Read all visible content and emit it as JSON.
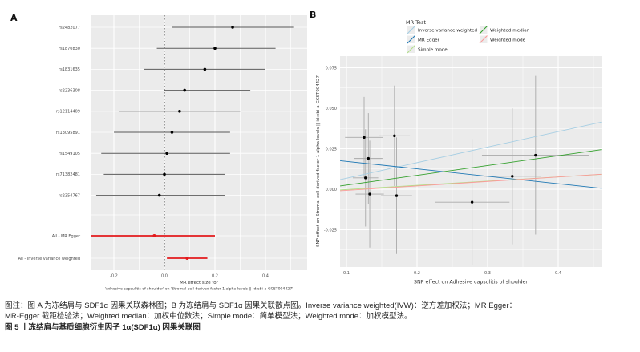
{
  "panels": {
    "a_label": "A",
    "b_label": "B"
  },
  "colors": {
    "panel_background": "#EBEBEB",
    "gridline": "#FFFFFF",
    "ci_line": "#5A5A5A",
    "point": "#000000",
    "summary_red": "#E31A1C",
    "error_bar": "#A9A9A9",
    "axis_text": "#4D4D4D",
    "ivw": "#A6CEE3",
    "mr_egger": "#1F78B4",
    "simple_mode": "#B2DF8A",
    "weighted_median": "#33A02C",
    "weighted_mode": "#FB9A99"
  },
  "chart_data": [
    {
      "type": "scatter",
      "subtype": "forest",
      "title": "",
      "xlabel_line1": "MR effect size for",
      "xlabel_line2": "'Adhesive capsulitis of shoulder' on 'Stromal-cell-derived factor 1 alpha levels || id:ebi-a-GCST004427'",
      "x_ticks": [
        -0.2,
        0.0,
        0.2,
        0.4
      ],
      "x_tick_labels": [
        "-0.2",
        "0.0",
        "0.2",
        "0.4"
      ],
      "xlim": [
        -0.29,
        0.56
      ],
      "zero_line": 0.0,
      "grid_step": 0.1,
      "rows": [
        {
          "label": "rs2482077",
          "estimate": 0.27,
          "ci_low": 0.03,
          "ci_high": 0.51,
          "group": "snp"
        },
        {
          "label": "rs1870830",
          "estimate": 0.2,
          "ci_low": -0.03,
          "ci_high": 0.44,
          "group": "snp"
        },
        {
          "label": "rs1831635",
          "estimate": 0.16,
          "ci_low": -0.08,
          "ci_high": 0.4,
          "group": "snp"
        },
        {
          "label": "rs2236308",
          "estimate": 0.08,
          "ci_low": 0.0,
          "ci_high": 0.34,
          "group": "snp"
        },
        {
          "label": "rs12114409",
          "estimate": 0.06,
          "ci_low": -0.18,
          "ci_high": 0.3,
          "group": "snp"
        },
        {
          "label": "rs13095891",
          "estimate": 0.03,
          "ci_low": -0.2,
          "ci_high": 0.26,
          "group": "snp"
        },
        {
          "label": "rs1549105",
          "estimate": 0.01,
          "ci_low": -0.25,
          "ci_high": 0.26,
          "group": "snp"
        },
        {
          "label": "rs71382481",
          "estimate": 0.0,
          "ci_low": -0.24,
          "ci_high": 0.24,
          "group": "snp"
        },
        {
          "label": "rs2354767",
          "estimate": -0.02,
          "ci_low": -0.27,
          "ci_high": 0.24,
          "group": "snp"
        },
        {
          "label": "All - MR Egger",
          "estimate": -0.04,
          "ci_low": -0.29,
          "ci_high": 0.2,
          "group": "summary"
        },
        {
          "label": "All - Inverse variance weighted",
          "estimate": 0.09,
          "ci_low": 0.01,
          "ci_high": 0.17,
          "group": "summary"
        }
      ]
    },
    {
      "type": "scatter",
      "xlabel": "SNP effect on Adhesive capsulitis of shoulder",
      "ylabel": "SNP effect on Stromal-cell-derived factor 1 alpha levels || id:ebi-a-GCST004427",
      "x_ticks": [
        0.1,
        0.2,
        0.3,
        0.4
      ],
      "x_tick_labels": [
        "0.1",
        "0.2",
        "0.3",
        "0.4"
      ],
      "y_ticks": [
        0.075,
        0.05,
        0.025,
        0.0,
        -0.025
      ],
      "y_tick_labels": [
        "0.075",
        "0.050",
        "0.025",
        "0.000",
        "-0.025"
      ],
      "xlim": [
        0.091,
        0.461
      ],
      "ylim": [
        -0.048,
        0.082
      ],
      "grid": true,
      "points": [
        {
          "x": 0.125,
          "y": 0.032,
          "xerr": 0.027,
          "yerr": 0.025
        },
        {
          "x": 0.168,
          "y": 0.033,
          "xerr": 0.022,
          "yerr": 0.031
        },
        {
          "x": 0.131,
          "y": 0.019,
          "xerr": 0.02,
          "yerr": 0.028
        },
        {
          "x": 0.127,
          "y": 0.007,
          "xerr": 0.018,
          "yerr": 0.03
        },
        {
          "x": 0.133,
          "y": -0.003,
          "xerr": 0.02,
          "yerr": 0.033
        },
        {
          "x": 0.171,
          "y": -0.004,
          "xerr": 0.022,
          "yerr": 0.036
        },
        {
          "x": 0.278,
          "y": -0.008,
          "xerr": 0.053,
          "yerr": 0.039
        },
        {
          "x": 0.335,
          "y": 0.008,
          "xerr": 0.04,
          "yerr": 0.042
        },
        {
          "x": 0.368,
          "y": 0.021,
          "xerr": 0.076,
          "yerr": 0.049
        }
      ],
      "lines": [
        {
          "name": "Inverse variance weighted",
          "color": "#A6CEE3",
          "intercept": -0.0028,
          "slope": 0.096
        },
        {
          "name": "MR Egger",
          "color": "#1F78B4",
          "intercept": 0.0218,
          "slope": -0.046
        },
        {
          "name": "Simple mode",
          "color": "#B2DF8A",
          "intercept": -0.0028,
          "slope": 0.026
        },
        {
          "name": "Weighted median",
          "color": "#33A02C",
          "intercept": -0.0035,
          "slope": 0.0605
        },
        {
          "name": "Weighted mode",
          "color": "#FB9A99",
          "intercept": -0.0035,
          "slope": 0.0277
        }
      ],
      "legend": {
        "title": "MR Test",
        "position": "top",
        "entries": [
          {
            "name": "Inverse variance weighted",
            "color": "#A6CEE3"
          },
          {
            "name": "MR Egger",
            "color": "#1F78B4"
          },
          {
            "name": "Simple mode",
            "color": "#B2DF8A"
          },
          {
            "name": "Weighted median",
            "color": "#33A02C"
          },
          {
            "name": "Weighted mode",
            "color": "#FB9A99"
          }
        ]
      }
    }
  ],
  "caption": {
    "line1": "图注：图 A 为冻结肩与 SDF1α 因果关联森林图；B 为冻结肩与 SDF1α 因果关联散点图。Inverse variance weighted(IVW)：逆方差加权法；MR Egger：",
    "line2": "MR-Egger 截距检验法；Weighted median：加权中位数法；Simple mode：简单模型法；Weighted mode：加权模型法。",
    "title": "图 5 丨冻结肩与基质细胞衍生因子 1α(SDF1α) 因果关联图"
  }
}
